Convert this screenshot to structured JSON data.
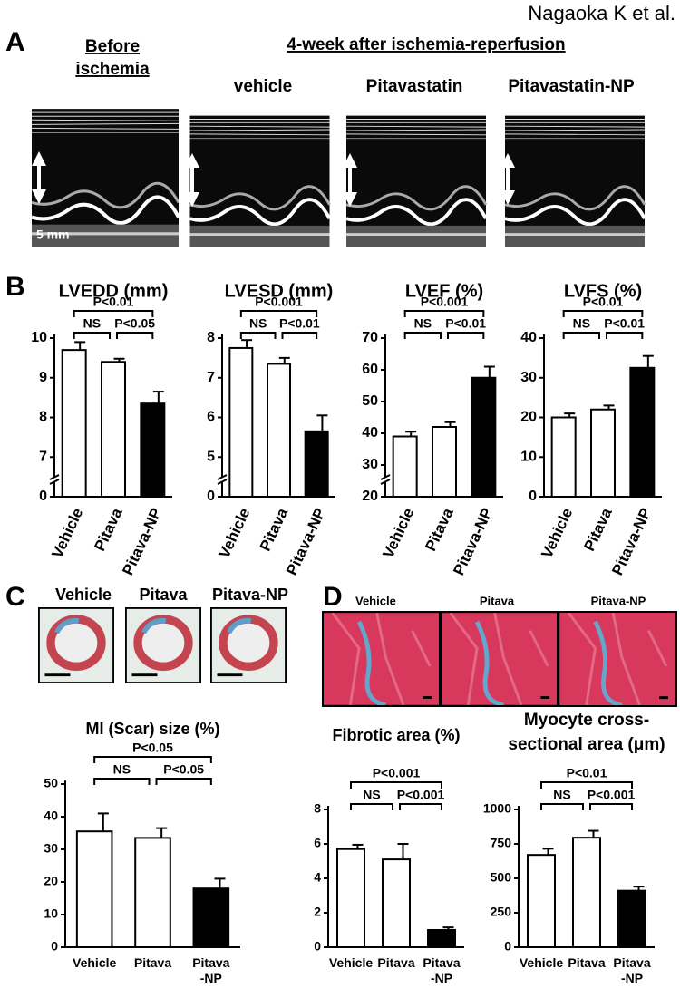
{
  "author": "Nagaoka K et al.",
  "panel_labels": {
    "a": "A",
    "b": "B",
    "c": "C",
    "d": "D"
  },
  "echo": {
    "before": [
      "Before",
      "ischemia"
    ],
    "after": "4-week after ischemia-reperfusion",
    "groups": [
      "vehicle",
      "Pitavastatin",
      "Pitavastatin-NP"
    ],
    "scale": "5 mm"
  },
  "hearts": {
    "groups": [
      "Vehicle",
      "Pitava",
      "Pitava-NP"
    ]
  },
  "histology": {
    "groups": [
      "Vehicle",
      "Pitava",
      "Pitava-NP"
    ]
  },
  "chart_data": [
    {
      "type": "bar",
      "title": "LVEDD (mm)",
      "categories": [
        "Vehicle",
        "Pitava",
        "Pitava-NP"
      ],
      "values": [
        9.7,
        9.4,
        8.35
      ],
      "errors": [
        0.2,
        0.08,
        0.3
      ],
      "colors": [
        "#ffffff",
        "#ffffff",
        "#000000"
      ],
      "ylim": [
        6,
        10
      ],
      "yticks": [
        7,
        8,
        9,
        10
      ],
      "axis_break_base": 0,
      "comparisons": {
        "overall": "P<0.01",
        "vehicle_pitava": "NS",
        "pitava_np": "P<0.05"
      }
    },
    {
      "type": "bar",
      "title": "LVESD (mm)",
      "categories": [
        "Vehicle",
        "Pitava",
        "Pitava-NP"
      ],
      "values": [
        7.75,
        7.35,
        5.65
      ],
      "errors": [
        0.2,
        0.15,
        0.4
      ],
      "colors": [
        "#ffffff",
        "#ffffff",
        "#000000"
      ],
      "ylim": [
        4,
        8
      ],
      "yticks": [
        5,
        6,
        7,
        8
      ],
      "axis_break_base": 0,
      "comparisons": {
        "overall": "P<0.001",
        "vehicle_pitava": "NS",
        "pitava_np": "P<0.01"
      }
    },
    {
      "type": "bar",
      "title": "LVEF (%)",
      "categories": [
        "Vehicle",
        "Pitava",
        "Pitava-NP"
      ],
      "values": [
        39,
        42,
        57.5
      ],
      "errors": [
        1.5,
        1.5,
        3.5
      ],
      "colors": [
        "#ffffff",
        "#ffffff",
        "#000000"
      ],
      "ylim": [
        20,
        70
      ],
      "yticks": [
        20,
        30,
        40,
        50,
        60,
        70
      ],
      "axis_break": true,
      "comparisons": {
        "overall": "P<0.001",
        "vehicle_pitava": "NS",
        "pitava_np": "P<0.01"
      }
    },
    {
      "type": "bar",
      "title": "LVFS (%)",
      "categories": [
        "Vehicle",
        "Pitava",
        "Pitava-NP"
      ],
      "values": [
        20,
        22,
        32.5
      ],
      "errors": [
        1,
        1,
        3
      ],
      "colors": [
        "#ffffff",
        "#ffffff",
        "#000000"
      ],
      "ylim": [
        0,
        40
      ],
      "yticks": [
        0,
        10,
        20,
        30,
        40
      ],
      "comparisons": {
        "overall": "P<0.01",
        "vehicle_pitava": "NS",
        "pitava_np": "P<0.01"
      }
    },
    {
      "type": "bar",
      "title": "MI (Scar) size (%)",
      "categories": [
        "Vehicle",
        "Pitava",
        "Pitava -NP"
      ],
      "values": [
        35.5,
        33.5,
        18
      ],
      "errors": [
        5.5,
        3,
        3
      ],
      "colors": [
        "#ffffff",
        "#ffffff",
        "#000000"
      ],
      "ylim": [
        0,
        50
      ],
      "yticks": [
        0,
        10,
        20,
        30,
        40,
        50
      ],
      "comparisons": {
        "overall": "P<0.05",
        "vehicle_pitava": "NS",
        "pitava_np": "P<0.05"
      }
    },
    {
      "type": "bar",
      "title": "Fibrotic area  (%)",
      "categories": [
        "Vehicle",
        "Pitava",
        "Pitava -NP"
      ],
      "values": [
        5.7,
        5.1,
        1.0
      ],
      "errors": [
        0.25,
        0.9,
        0.15
      ],
      "colors": [
        "#ffffff",
        "#ffffff",
        "#000000"
      ],
      "ylim": [
        0,
        8
      ],
      "yticks": [
        0,
        2,
        4,
        6,
        8
      ],
      "comparisons": {
        "overall": "P<0.001",
        "vehicle_pitava": "NS",
        "pitava_np": "P<0.001"
      }
    },
    {
      "type": "bar",
      "title": [
        "Myocyte cross-",
        "sectional area (μm)"
      ],
      "categories": [
        "Vehicle",
        "Pitava",
        "Pitava -NP"
      ],
      "values": [
        670,
        795,
        410
      ],
      "errors": [
        45,
        50,
        30
      ],
      "colors": [
        "#ffffff",
        "#ffffff",
        "#000000"
      ],
      "ylim": [
        0,
        1000
      ],
      "yticks": [
        0,
        250,
        500,
        750,
        1000
      ],
      "comparisons": {
        "overall": "P<0.01",
        "vehicle_pitava": "NS",
        "pitava_np": "P<0.001"
      }
    }
  ]
}
